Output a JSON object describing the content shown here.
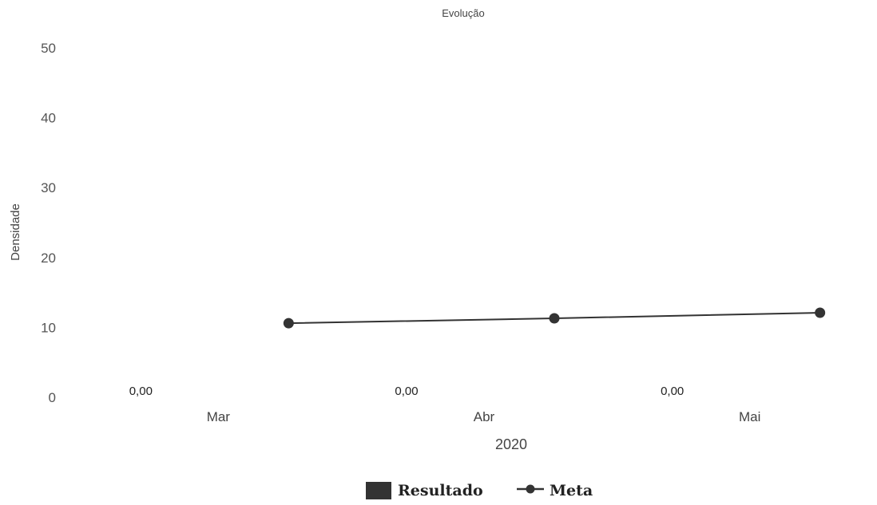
{
  "chart_data": {
    "type": "bar",
    "title": "Evolução",
    "xlabel": "2020",
    "ylabel": "Densidade",
    "categories": [
      "Mar",
      "Abr",
      "Mai"
    ],
    "ylim": [
      0,
      50
    ],
    "yticks": [
      0,
      10,
      20,
      30,
      40,
      50
    ],
    "grid": false,
    "legend_position": "bottom-center",
    "series": [
      {
        "name": "Resultado",
        "kind": "bar",
        "values": [
          0,
          0,
          0
        ],
        "data_labels": [
          "0,00",
          "0,00",
          "0,00"
        ],
        "color": "#333333"
      },
      {
        "name": "Meta",
        "kind": "line",
        "values": [
          10.6,
          11.3,
          12.1
        ],
        "color": "#333333"
      }
    ]
  }
}
